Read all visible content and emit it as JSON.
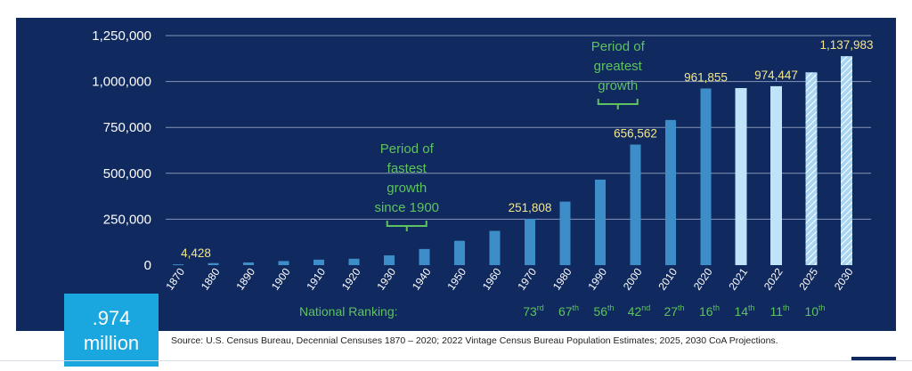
{
  "chart_data": {
    "type": "bar",
    "title": "",
    "ylim": [
      0,
      1250000
    ],
    "yticks": [
      0,
      250000,
      500000,
      750000,
      1000000,
      1250000
    ],
    "ytick_labels": [
      "0",
      "250,000",
      "500,000",
      "750,000",
      "1,000,000",
      "1,250,000"
    ],
    "grid": true,
    "categories": [
      "1870",
      "1880",
      "1890",
      "1900",
      "1910",
      "1920",
      "1930",
      "1940",
      "1950",
      "1960",
      "1970",
      "1980",
      "1990",
      "2000",
      "2010",
      "2020",
      "2021",
      "2022",
      "2025",
      "2030"
    ],
    "values": [
      4428,
      11013,
      14575,
      22258,
      29860,
      34876,
      53120,
      87930,
      132459,
      186545,
      251808,
      345890,
      465622,
      656562,
      790390,
      961855,
      964177,
      974447,
      1050000,
      1137983
    ],
    "bar_kinds": [
      "census",
      "census",
      "census",
      "census",
      "census",
      "census",
      "census",
      "census",
      "census",
      "census",
      "census",
      "census",
      "census",
      "census",
      "census",
      "census",
      "estimate",
      "estimate",
      "projection",
      "projection"
    ],
    "data_labels": [
      {
        "category": "1870",
        "text": "4,428"
      },
      {
        "category": "1970",
        "text": "251,808"
      },
      {
        "category": "2000",
        "text": "656,562"
      },
      {
        "category": "2020",
        "text": "961,855"
      },
      {
        "category": "2022",
        "text": "974,447"
      },
      {
        "category": "2030",
        "text": "1,137,983"
      }
    ],
    "annotations": [
      {
        "category": "1935",
        "lines": [
          "Period of",
          "fastest",
          "growth",
          "since 1900"
        ]
      },
      {
        "category": "1995",
        "lines": [
          "Period of",
          "greatest",
          "growth"
        ]
      }
    ],
    "national_ranking": {
      "label": "National Ranking:",
      "entries": [
        {
          "category": "1970",
          "num": "73",
          "suffix": "rd"
        },
        {
          "category": "1980",
          "num": "67",
          "suffix": "th"
        },
        {
          "category": "1990",
          "num": "56",
          "suffix": "th"
        },
        {
          "category": "2000",
          "num": "42",
          "suffix": "nd"
        },
        {
          "category": "2010",
          "num": "27",
          "suffix": "th"
        },
        {
          "category": "2020",
          "num": "16",
          "suffix": "th"
        },
        {
          "category": "2021",
          "num": "14",
          "suffix": "th"
        },
        {
          "category": "2022",
          "num": "11",
          "suffix": "th"
        },
        {
          "category": "2025",
          "num": "10",
          "suffix": "th"
        }
      ]
    }
  },
  "colors": {
    "census": "#3d8dc8",
    "estimate": "#bfe3f8",
    "projection": "#a9d6f2",
    "grid": "#8596b8",
    "background": "#10295f"
  },
  "badge": {
    "value": ".974",
    "unit": "million"
  },
  "source": "Source: U.S. Census Bureau, Decennial Censuses 1870 – 2020; 2022 Vintage Census Bureau Population Estimates; 2025, 2030 CoA Projections."
}
